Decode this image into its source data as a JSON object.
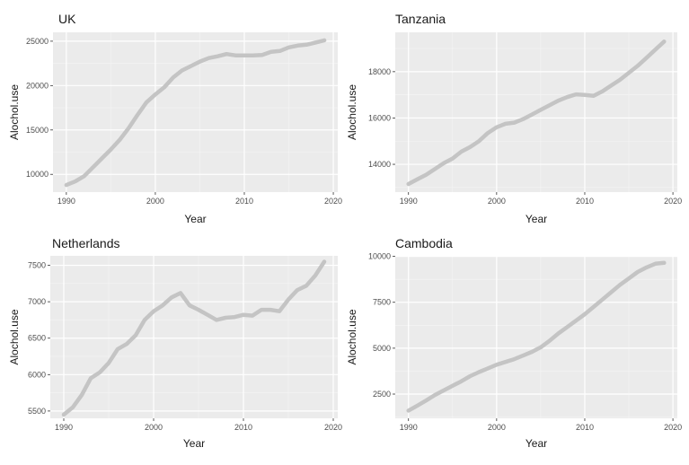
{
  "chart_data": [
    {
      "type": "line",
      "title": "UK",
      "xlabel": "Year",
      "ylabel": "Alochol.use",
      "grid": true,
      "line_color": "#c4c4c4",
      "panel_bg": "#ebebeb",
      "xlim": [
        1988.5,
        2020.5
      ],
      "ylim": [
        8000,
        26000
      ],
      "xticks": [
        1990,
        2000,
        2010,
        2020
      ],
      "yticks": [
        10000,
        15000,
        20000,
        25000
      ],
      "xtick_labels": [
        "1990",
        "2000",
        "2010",
        "2020"
      ],
      "ytick_labels": [
        "10000",
        "15000",
        "20000",
        "25000"
      ],
      "x": [
        1990,
        1991,
        1992,
        1993,
        1994,
        1995,
        1996,
        1997,
        1998,
        1999,
        2000,
        2001,
        2002,
        2003,
        2004,
        2005,
        2006,
        2007,
        2008,
        2009,
        2010,
        2011,
        2012,
        2013,
        2014,
        2015,
        2016,
        2017,
        2018,
        2019
      ],
      "y": [
        8800,
        9200,
        9800,
        10800,
        11800,
        12800,
        13900,
        15200,
        16700,
        18100,
        19000,
        19800,
        20900,
        21700,
        22200,
        22700,
        23100,
        23300,
        23550,
        23400,
        23400,
        23400,
        23450,
        23800,
        23900,
        24300,
        24500,
        24600,
        24850,
        25100
      ]
    },
    {
      "type": "line",
      "title": "Tanzania",
      "xlabel": "Year",
      "ylabel": "Alochol.use",
      "grid": true,
      "line_color": "#c4c4c4",
      "panel_bg": "#ebebeb",
      "xlim": [
        1988.5,
        2020.5
      ],
      "ylim": [
        12800,
        19700
      ],
      "xticks": [
        1990,
        2000,
        2010,
        2020
      ],
      "yticks": [
        14000,
        16000,
        18000
      ],
      "xtick_labels": [
        "1990",
        "2000",
        "2010",
        "2020"
      ],
      "ytick_labels": [
        "14000",
        "16000",
        "18000"
      ],
      "x": [
        1990,
        1991,
        1992,
        1993,
        1994,
        1995,
        1996,
        1997,
        1998,
        1999,
        2000,
        2001,
        2002,
        2003,
        2004,
        2005,
        2006,
        2007,
        2008,
        2009,
        2010,
        2011,
        2012,
        2013,
        2014,
        2015,
        2016,
        2017,
        2018,
        2019
      ],
      "y": [
        13150,
        13350,
        13550,
        13800,
        14050,
        14250,
        14550,
        14750,
        15000,
        15350,
        15600,
        15750,
        15800,
        15950,
        16150,
        16350,
        16550,
        16750,
        16900,
        17020,
        17000,
        16960,
        17150,
        17400,
        17650,
        17950,
        18250,
        18600,
        18950,
        19300
      ]
    },
    {
      "type": "line",
      "title": "Netherlands",
      "xlabel": "Year",
      "ylabel": "Alochol.use",
      "grid": true,
      "line_color": "#c4c4c4",
      "panel_bg": "#ebebeb",
      "xlim": [
        1988.5,
        2020.5
      ],
      "ylim": [
        5400,
        7630
      ],
      "xticks": [
        1990,
        2000,
        2010,
        2020
      ],
      "yticks": [
        5500,
        6000,
        6500,
        7000,
        7500
      ],
      "xtick_labels": [
        "1990",
        "2000",
        "2010",
        "2020"
      ],
      "ytick_labels": [
        "5500",
        "6000",
        "6500",
        "7000",
        "7500"
      ],
      "x": [
        1990,
        1991,
        1992,
        1993,
        1994,
        1995,
        1996,
        1997,
        1998,
        1999,
        2000,
        2001,
        2002,
        2003,
        2004,
        2005,
        2006,
        2007,
        2008,
        2009,
        2010,
        2011,
        2012,
        2013,
        2014,
        2015,
        2016,
        2017,
        2018,
        2019
      ],
      "y": [
        5450,
        5550,
        5720,
        5950,
        6030,
        6160,
        6350,
        6420,
        6540,
        6750,
        6870,
        6950,
        7060,
        7120,
        6950,
        6890,
        6820,
        6750,
        6780,
        6790,
        6820,
        6810,
        6890,
        6890,
        6870,
        7030,
        7160,
        7220,
        7360,
        7550
      ]
    },
    {
      "type": "line",
      "title": "Cambodia",
      "xlabel": "Year",
      "ylabel": "Alochol.use",
      "grid": true,
      "line_color": "#c4c4c4",
      "panel_bg": "#ebebeb",
      "xlim": [
        1988.5,
        2020.5
      ],
      "ylim": [
        1180,
        10030
      ],
      "xticks": [
        1990,
        2000,
        2010,
        2020
      ],
      "yticks": [
        2500,
        5000,
        7500,
        10000
      ],
      "xtick_labels": [
        "1990",
        "2000",
        "2010",
        "2020"
      ],
      "ytick_labels": [
        "2500",
        "5000",
        "7500",
        "10000"
      ],
      "x": [
        1990,
        1991,
        1992,
        1993,
        1994,
        1995,
        1996,
        1997,
        1998,
        1999,
        2000,
        2001,
        2002,
        2003,
        2004,
        2005,
        2006,
        2007,
        2008,
        2009,
        2010,
        2011,
        2012,
        2013,
        2014,
        2015,
        2016,
        2017,
        2018,
        2019
      ],
      "y": [
        1600,
        1870,
        2150,
        2450,
        2700,
        2950,
        3200,
        3480,
        3700,
        3900,
        4100,
        4250,
        4400,
        4600,
        4800,
        5050,
        5400,
        5800,
        6150,
        6500,
        6850,
        7250,
        7650,
        8050,
        8450,
        8800,
        9150,
        9400,
        9600,
        9650
      ]
    }
  ]
}
